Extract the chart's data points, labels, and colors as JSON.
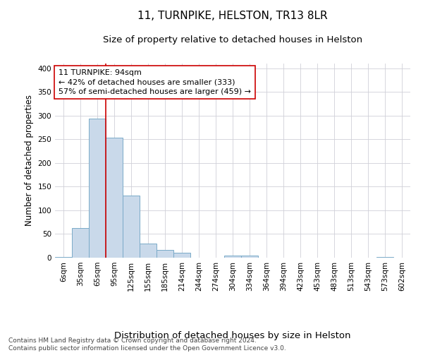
{
  "title": "11, TURNPIKE, HELSTON, TR13 8LR",
  "subtitle": "Size of property relative to detached houses in Helston",
  "xlabel": "Distribution of detached houses by size in Helston",
  "ylabel": "Number of detached properties",
  "categories": [
    "6sqm",
    "35sqm",
    "65sqm",
    "95sqm",
    "125sqm",
    "155sqm",
    "185sqm",
    "214sqm",
    "244sqm",
    "274sqm",
    "304sqm",
    "334sqm",
    "364sqm",
    "394sqm",
    "423sqm",
    "453sqm",
    "483sqm",
    "513sqm",
    "543sqm",
    "573sqm",
    "602sqm"
  ],
  "values": [
    2,
    62,
    293,
    253,
    131,
    30,
    17,
    11,
    0,
    0,
    4,
    4,
    0,
    0,
    0,
    0,
    0,
    0,
    0,
    2,
    0
  ],
  "bar_color": "#c9d9ea",
  "bar_edge_color": "#7aaac8",
  "vline_x_idx": 3,
  "vline_color": "#cc0000",
  "annotation_text": "11 TURNPIKE: 94sqm\n← 42% of detached houses are smaller (333)\n57% of semi-detached houses are larger (459) →",
  "annotation_box_color": "#ffffff",
  "annotation_box_edge": "#cc0000",
  "ylim": [
    0,
    410
  ],
  "yticks": [
    0,
    50,
    100,
    150,
    200,
    250,
    300,
    350,
    400
  ],
  "footer": "Contains HM Land Registry data © Crown copyright and database right 2024.\nContains public sector information licensed under the Open Government Licence v3.0.",
  "bg_color": "#ffffff",
  "grid_color": "#d0d0d8",
  "title_fontsize": 11,
  "subtitle_fontsize": 9.5,
  "xlabel_fontsize": 9.5,
  "ylabel_fontsize": 8.5,
  "tick_fontsize": 7.5,
  "annotation_fontsize": 8,
  "footer_fontsize": 6.5
}
